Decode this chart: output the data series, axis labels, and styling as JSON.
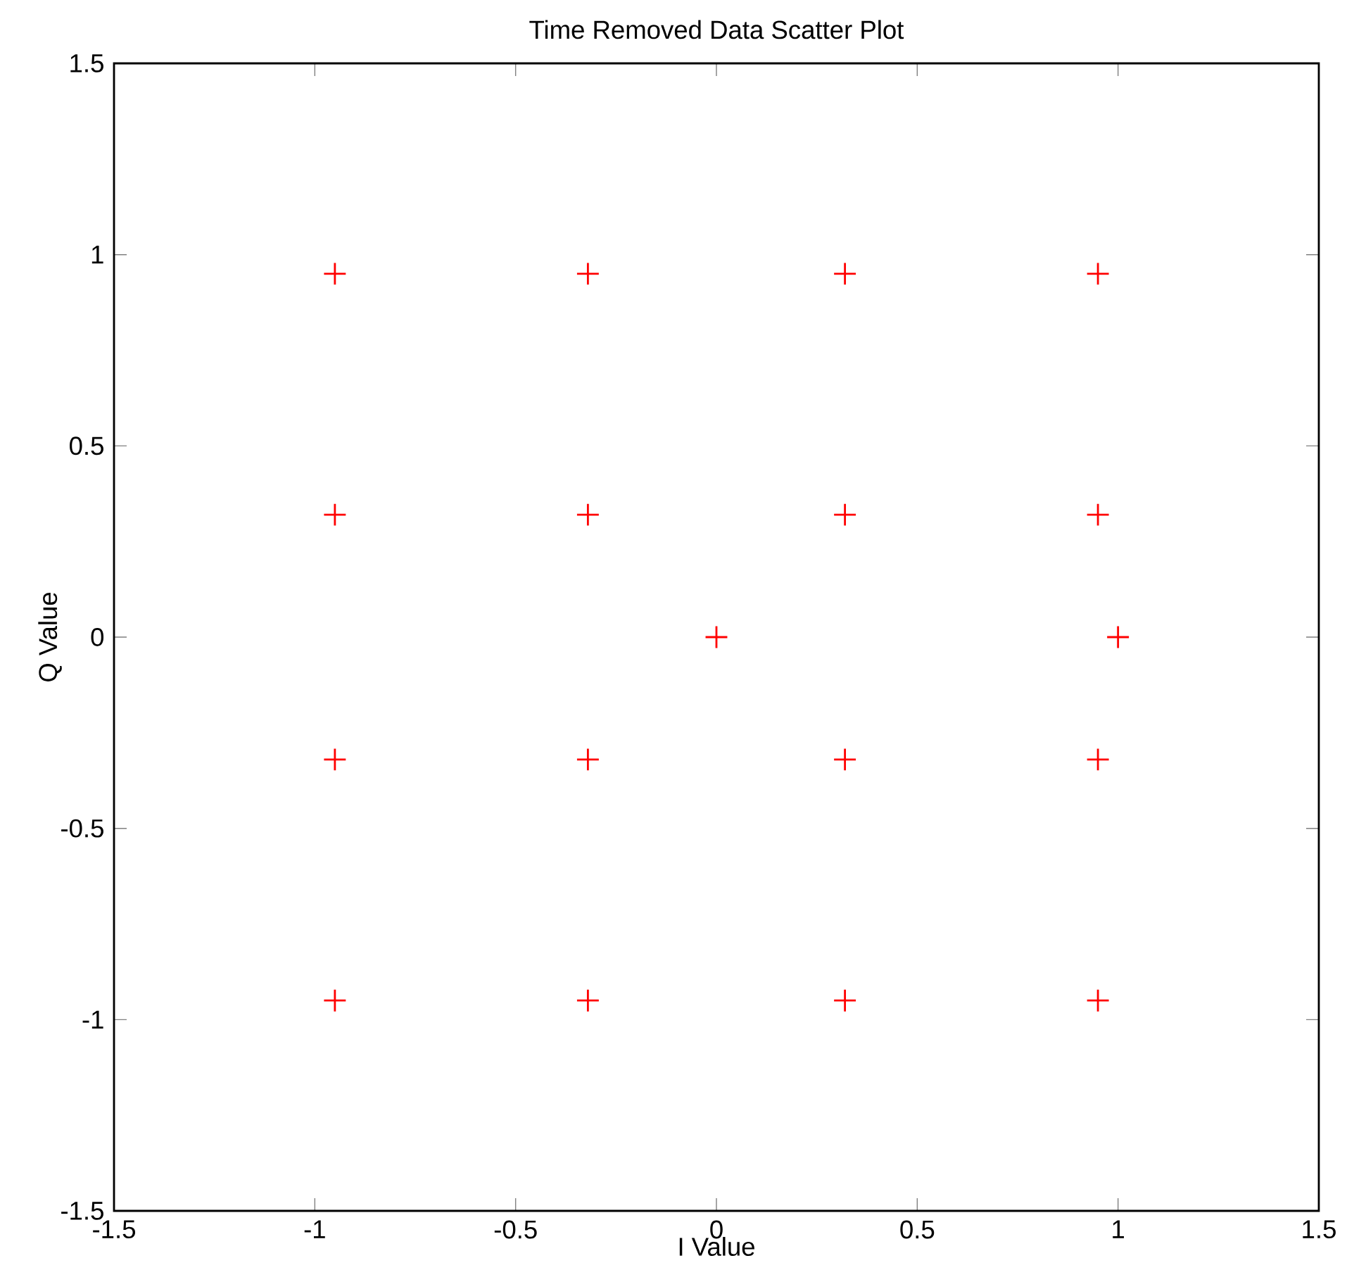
{
  "chart_data": {
    "type": "scatter",
    "title": "Time Removed Data Scatter Plot",
    "xlabel": "I Value",
    "ylabel": "Q Value",
    "x": [
      -0.95,
      -0.32,
      0.32,
      0.95,
      -0.95,
      -0.32,
      0.32,
      0.95,
      0,
      1,
      -0.95,
      -0.32,
      0.32,
      0.95,
      -0.95,
      -0.32,
      0.32,
      0.95
    ],
    "values": [
      0.95,
      0.95,
      0.95,
      0.95,
      0.32,
      0.32,
      0.32,
      0.32,
      0,
      0,
      -0.32,
      -0.32,
      -0.32,
      -0.32,
      -0.95,
      -0.95,
      -0.95,
      -0.95
    ],
    "color": "#ff0000",
    "marker": "cross",
    "xlim": [
      -1.5,
      1.5
    ],
    "ylim": [
      -1.5,
      1.5
    ],
    "xticks": [
      -1.5,
      -1,
      -0.5,
      0,
      0.5,
      1,
      1.5
    ],
    "yticks": [
      -1.5,
      -1,
      -0.5,
      0,
      0.5,
      1,
      1.5
    ]
  }
}
